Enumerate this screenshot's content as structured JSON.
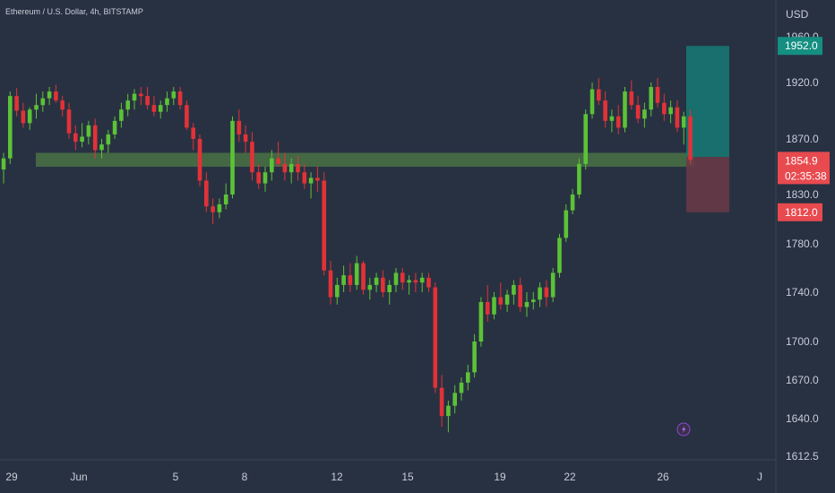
{
  "header": {
    "title": "Ethereum / U.S. Dollar, 4h, BITSTAMP",
    "currency": "USD"
  },
  "colors": {
    "background": "#283142",
    "up": "#5cc236",
    "down": "#e23237",
    "zone": "#4e7a45",
    "target": "#157a74",
    "stop": "#6a3a46",
    "target_tag": "#148f82",
    "price_tag": "#e84a4f"
  },
  "chart_data": {
    "type": "candlestick",
    "symbol": "Ethereum / U.S. Dollar",
    "interval": "4h",
    "exchange": "BITSTAMP",
    "y_ticks": [
      "1960.0",
      "1920.0",
      "1870.0",
      "1830.0",
      "1780.0",
      "1740.0",
      "1700.0",
      "1670.0",
      "1640.0",
      "1612.5"
    ],
    "x_ticks": [
      "29",
      "Jun",
      "5",
      "8",
      "12",
      "15",
      "19",
      "22",
      "26",
      "J"
    ],
    "ylim": [
      1612.5,
      1960.0
    ],
    "current_price": "1854.9",
    "countdown": "02:35:38",
    "target_price": "1952.0",
    "stop_price": "1812.0",
    "support_zone": [
      1850,
      1860
    ],
    "position": {
      "entry": 1857,
      "target": 1952.0,
      "stop": 1812.0
    },
    "candles": [
      [
        1848,
        1860,
        1838,
        1856
      ],
      [
        1856,
        1912,
        1852,
        1908
      ],
      [
        1908,
        1915,
        1890,
        1895
      ],
      [
        1895,
        1902,
        1880,
        1884
      ],
      [
        1884,
        1898,
        1878,
        1896
      ],
      [
        1896,
        1910,
        1888,
        1900
      ],
      [
        1900,
        1912,
        1894,
        1906
      ],
      [
        1906,
        1916,
        1900,
        1912
      ],
      [
        1912,
        1918,
        1902,
        1904
      ],
      [
        1904,
        1908,
        1890,
        1896
      ],
      [
        1896,
        1902,
        1870,
        1875
      ],
      [
        1875,
        1882,
        1862,
        1868
      ],
      [
        1868,
        1884,
        1864,
        1872
      ],
      [
        1872,
        1886,
        1866,
        1882
      ],
      [
        1882,
        1888,
        1856,
        1862
      ],
      [
        1862,
        1870,
        1856,
        1866
      ],
      [
        1866,
        1878,
        1860,
        1874
      ],
      [
        1874,
        1890,
        1870,
        1886
      ],
      [
        1886,
        1902,
        1880,
        1896
      ],
      [
        1896,
        1910,
        1890,
        1904
      ],
      [
        1904,
        1914,
        1896,
        1910
      ],
      [
        1910,
        1916,
        1900,
        1908
      ],
      [
        1908,
        1916,
        1896,
        1900
      ],
      [
        1900,
        1908,
        1890,
        1894
      ],
      [
        1894,
        1904,
        1888,
        1900
      ],
      [
        1900,
        1912,
        1894,
        1906
      ],
      [
        1906,
        1916,
        1900,
        1912
      ],
      [
        1912,
        1916,
        1896,
        1900
      ],
      [
        1900,
        1904,
        1878,
        1880
      ],
      [
        1880,
        1884,
        1862,
        1870
      ],
      [
        1870,
        1874,
        1836,
        1840
      ],
      [
        1840,
        1846,
        1812,
        1818
      ],
      [
        1818,
        1826,
        1800,
        1812
      ],
      [
        1812,
        1826,
        1806,
        1820
      ],
      [
        1820,
        1838,
        1815,
        1830
      ],
      [
        1830,
        1890,
        1826,
        1886
      ],
      [
        1886,
        1896,
        1868,
        1874
      ],
      [
        1874,
        1882,
        1860,
        1868
      ],
      [
        1868,
        1876,
        1840,
        1846
      ],
      [
        1846,
        1852,
        1834,
        1838
      ],
      [
        1838,
        1850,
        1832,
        1846
      ],
      [
        1846,
        1862,
        1840,
        1856
      ],
      [
        1856,
        1868,
        1850,
        1852
      ],
      [
        1852,
        1860,
        1840,
        1846
      ],
      [
        1846,
        1856,
        1838,
        1852
      ],
      [
        1852,
        1858,
        1840,
        1846
      ],
      [
        1846,
        1852,
        1834,
        1838
      ],
      [
        1838,
        1846,
        1826,
        1842
      ],
      [
        1842,
        1850,
        1832,
        1840
      ],
      [
        1840,
        1846,
        1754,
        1758
      ],
      [
        1758,
        1766,
        1730,
        1736
      ],
      [
        1736,
        1752,
        1730,
        1746
      ],
      [
        1746,
        1762,
        1740,
        1754
      ],
      [
        1754,
        1764,
        1740,
        1746
      ],
      [
        1746,
        1770,
        1742,
        1764
      ],
      [
        1764,
        1766,
        1738,
        1742
      ],
      [
        1742,
        1752,
        1734,
        1746
      ],
      [
        1746,
        1756,
        1740,
        1752
      ],
      [
        1752,
        1758,
        1736,
        1740
      ],
      [
        1740,
        1750,
        1730,
        1746
      ],
      [
        1746,
        1760,
        1740,
        1756
      ],
      [
        1756,
        1760,
        1742,
        1748
      ],
      [
        1748,
        1754,
        1738,
        1750
      ],
      [
        1750,
        1756,
        1740,
        1748
      ],
      [
        1748,
        1756,
        1740,
        1752
      ],
      [
        1752,
        1756,
        1740,
        1744
      ],
      [
        1744,
        1748,
        1660,
        1664
      ],
      [
        1664,
        1674,
        1634,
        1642
      ],
      [
        1642,
        1654,
        1630,
        1650
      ],
      [
        1650,
        1666,
        1644,
        1660
      ],
      [
        1660,
        1672,
        1654,
        1668
      ],
      [
        1668,
        1682,
        1662,
        1676
      ],
      [
        1676,
        1706,
        1672,
        1700
      ],
      [
        1700,
        1736,
        1696,
        1732
      ],
      [
        1732,
        1746,
        1716,
        1722
      ],
      [
        1722,
        1740,
        1718,
        1736
      ],
      [
        1736,
        1748,
        1726,
        1730
      ],
      [
        1730,
        1742,
        1724,
        1738
      ],
      [
        1738,
        1750,
        1730,
        1746
      ],
      [
        1746,
        1752,
        1724,
        1728
      ],
      [
        1728,
        1740,
        1720,
        1732
      ],
      [
        1732,
        1740,
        1726,
        1734
      ],
      [
        1734,
        1748,
        1728,
        1744
      ],
      [
        1744,
        1750,
        1728,
        1736
      ],
      [
        1736,
        1760,
        1732,
        1756
      ],
      [
        1756,
        1790,
        1752,
        1786
      ],
      [
        1786,
        1820,
        1782,
        1814
      ],
      [
        1814,
        1834,
        1810,
        1830
      ],
      [
        1830,
        1856,
        1826,
        1852
      ],
      [
        1852,
        1896,
        1848,
        1892
      ],
      [
        1892,
        1920,
        1888,
        1914
      ],
      [
        1914,
        1924,
        1900,
        1904
      ],
      [
        1904,
        1912,
        1880,
        1886
      ],
      [
        1886,
        1896,
        1876,
        1890
      ],
      [
        1890,
        1900,
        1874,
        1880
      ],
      [
        1880,
        1916,
        1876,
        1912
      ],
      [
        1912,
        1922,
        1896,
        1900
      ],
      [
        1900,
        1908,
        1884,
        1888
      ],
      [
        1888,
        1902,
        1880,
        1896
      ],
      [
        1896,
        1920,
        1890,
        1916
      ],
      [
        1916,
        1924,
        1898,
        1902
      ],
      [
        1902,
        1910,
        1886,
        1892
      ],
      [
        1892,
        1904,
        1884,
        1898
      ],
      [
        1898,
        1904,
        1876,
        1880
      ],
      [
        1880,
        1894,
        1866,
        1890
      ],
      [
        1890,
        1896,
        1852,
        1855
      ]
    ]
  }
}
